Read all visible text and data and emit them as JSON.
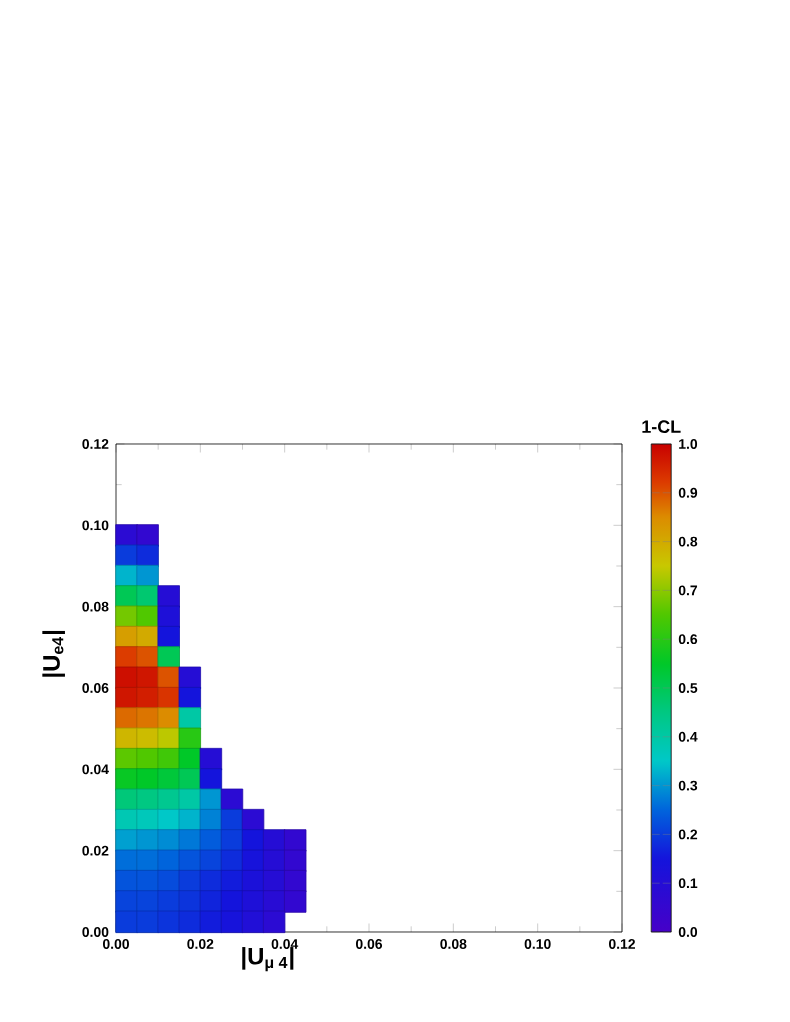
{
  "chart_data": {
    "type": "scatter",
    "xlabel": "|U$_{μ 4}$|",
    "ylabel": "|U$_{e4}$|",
    "clabel": "1-CL",
    "xlim": [
      0,
      0.12
    ],
    "ylim": [
      0,
      0.12
    ],
    "xticks": [
      {
        "value": 0,
        "label": "0.00"
      },
      0.02,
      0.04,
      0.06,
      0.08,
      {
        "value": 0.1,
        "label": "0.10"
      },
      0.12
    ],
    "yticks": [
      {
        "value": 0,
        "label": "0.00"
      },
      0.02,
      0.04,
      0.06,
      0.08,
      {
        "value": 0.1,
        "label": "0.10"
      },
      0.12
    ],
    "clim": [
      0,
      1
    ],
    "cticks": [
      {
        "value": 0,
        "label": "0.0"
      },
      0.1,
      0.2,
      0.3,
      0.4,
      0.5,
      0.6,
      0.7,
      0.8,
      0.9,
      {
        "value": 1,
        "label": "1.0"
      }
    ],
    "marker": "square",
    "x": [
      0.0025,
      0.0075,
      0.0025,
      0.0075,
      0.0025,
      0.0075,
      0.0025,
      0.0075,
      0.0125,
      0.0025,
      0.0075,
      0.0125,
      0.0025,
      0.0075,
      0.0125,
      0.0025,
      0.0075,
      0.0125,
      0.0025,
      0.0075,
      0.0125,
      0.0175,
      0.0025,
      0.0075,
      0.0125,
      0.0175,
      0.0025,
      0.0075,
      0.0125,
      0.0175,
      0.0025,
      0.0075,
      0.0125,
      0.0175,
      0.0025,
      0.0075,
      0.0125,
      0.0175,
      0.0225,
      0.0025,
      0.0075,
      0.0125,
      0.0175,
      0.0225,
      0.0025,
      0.0075,
      0.0125,
      0.0175,
      0.0225,
      0.0275,
      0.0025,
      0.0075,
      0.0125,
      0.0175,
      0.0225,
      0.0275,
      0.0325,
      0.0025,
      0.0075,
      0.0125,
      0.0175,
      0.0225,
      0.0275,
      0.0325,
      0.0375,
      0.0425,
      0.0025,
      0.0075,
      0.0125,
      0.0175,
      0.0225,
      0.0275,
      0.0325,
      0.0375,
      0.0425,
      0.0025,
      0.0075,
      0.0125,
      0.0175,
      0.0225,
      0.0275,
      0.0325,
      0.0375,
      0.0425,
      0.0025,
      0.0075,
      0.0125,
      0.0175,
      0.0225,
      0.0275,
      0.0325,
      0.0375,
      0.0425,
      0.0025,
      0.0075,
      0.0125,
      0.0175,
      0.0225,
      0.0275,
      0.0325,
      0.0375
    ],
    "values": [
      0.0975,
      0.0975,
      0.0925,
      0.0925,
      0.0875,
      0.0875,
      0.0825,
      0.0825,
      0.0825,
      0.0775,
      0.0775,
      0.0775,
      0.0725,
      0.0725,
      0.0725,
      0.0675,
      0.0675,
      0.0675,
      0.0625,
      0.0625,
      0.0625,
      0.0625,
      0.0575,
      0.0575,
      0.0575,
      0.0575,
      0.0525,
      0.0525,
      0.0525,
      0.0525,
      0.0475,
      0.0475,
      0.0475,
      0.0475,
      0.0425,
      0.0425,
      0.0425,
      0.0425,
      0.0425,
      0.0375,
      0.0375,
      0.0375,
      0.0375,
      0.0375,
      0.0325,
      0.0325,
      0.0325,
      0.0325,
      0.0325,
      0.0325,
      0.0275,
      0.0275,
      0.0275,
      0.0275,
      0.0275,
      0.0275,
      0.0275,
      0.0225,
      0.0225,
      0.0225,
      0.0225,
      0.0225,
      0.0225,
      0.0225,
      0.0225,
      0.0225,
      0.0175,
      0.0175,
      0.0175,
      0.0175,
      0.0175,
      0.0175,
      0.0175,
      0.0175,
      0.0175,
      0.0125,
      0.0125,
      0.0125,
      0.0125,
      0.0125,
      0.0125,
      0.0125,
      0.0125,
      0.0125,
      0.0075,
      0.0075,
      0.0075,
      0.0075,
      0.0075,
      0.0075,
      0.0075,
      0.0075,
      0.0075,
      0.0025,
      0.0025,
      0.0025,
      0.0025,
      0.0025,
      0.0025,
      0.0025,
      0.0025
    ],
    "cvalues": [
      0.08,
      0.06,
      0.2,
      0.18,
      0.33,
      0.3,
      0.5,
      0.47,
      0.1,
      0.68,
      0.65,
      0.12,
      0.82,
      0.8,
      0.15,
      0.92,
      0.9,
      0.5,
      0.98,
      0.97,
      0.9,
      0.1,
      0.97,
      0.96,
      0.93,
      0.15,
      0.88,
      0.87,
      0.85,
      0.4,
      0.78,
      0.77,
      0.74,
      0.6,
      0.66,
      0.65,
      0.63,
      0.55,
      0.1,
      0.56,
      0.55,
      0.53,
      0.5,
      0.15,
      0.46,
      0.45,
      0.43,
      0.4,
      0.3,
      0.08,
      0.38,
      0.37,
      0.35,
      0.33,
      0.28,
      0.2,
      0.08,
      0.31,
      0.3,
      0.29,
      0.27,
      0.24,
      0.2,
      0.15,
      0.1,
      0.06,
      0.26,
      0.26,
      0.25,
      0.23,
      0.21,
      0.18,
      0.14,
      0.1,
      0.06,
      0.23,
      0.23,
      0.22,
      0.2,
      0.18,
      0.16,
      0.13,
      0.1,
      0.06,
      0.21,
      0.21,
      0.2,
      0.19,
      0.17,
      0.15,
      0.12,
      0.09,
      0.06,
      0.2,
      0.2,
      0.19,
      0.18,
      0.16,
      0.14,
      0.11,
      0.08
    ]
  }
}
